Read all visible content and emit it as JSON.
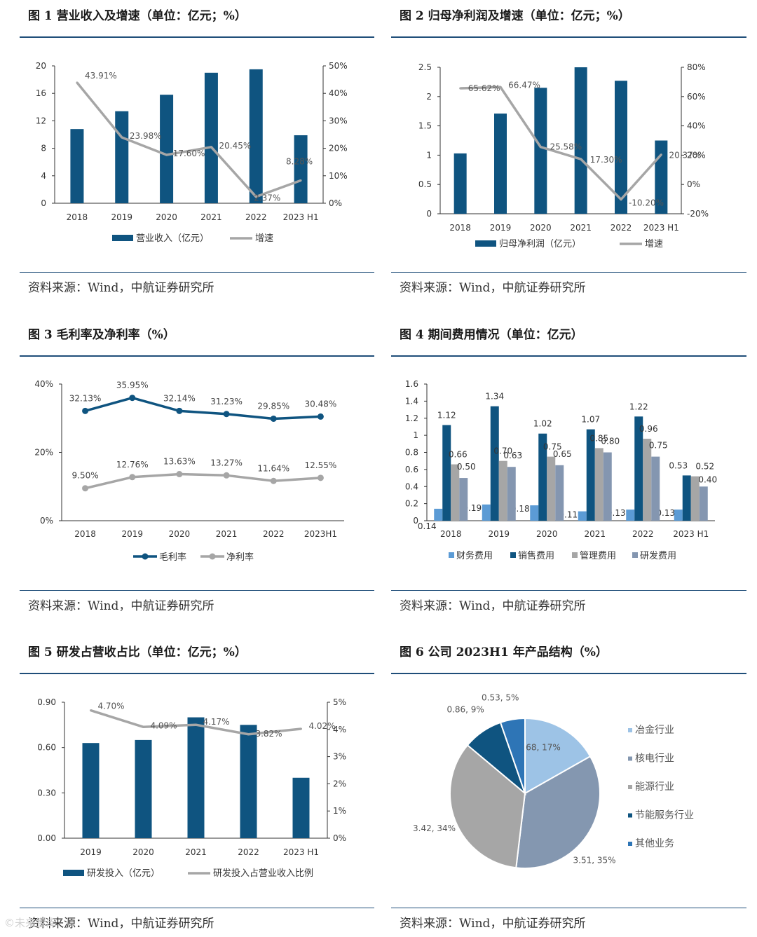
{
  "colors": {
    "navy": "#0f5480",
    "gray": "#a6a6a6",
    "light_blue": "#5b9bd5",
    "slate": "#8496b0",
    "rule": "#1f4e79"
  },
  "source_text": "资料来源：Wind，中航证券研究所",
  "watermark": "©未来智库",
  "figures": [
    {
      "title": "图 1 营业收入及增速（单位：亿元；%）",
      "chart_data": {
        "type": "bar+line",
        "categories": [
          "2018",
          "2019",
          "2020",
          "2021",
          "2022",
          "2023 H1"
        ],
        "series": [
          {
            "name": "营业收入（亿元）",
            "kind": "bar",
            "axis": "left",
            "values": [
              10.8,
              13.4,
              15.8,
              19.0,
              19.5,
              9.9
            ]
          },
          {
            "name": "增速",
            "kind": "line",
            "axis": "right",
            "values": [
              43.91,
              23.98,
              17.6,
              20.45,
              2.37,
              8.28
            ],
            "labels": [
              "43.91%",
              "23.98%",
              "17.60%",
              "20.45%",
              "2.37%",
              "8.28%"
            ]
          }
        ],
        "left_axis": {
          "min": 0,
          "max": 20,
          "ticks": [
            "0",
            "4",
            "8",
            "12",
            "16",
            "20"
          ]
        },
        "right_axis": {
          "min": 0,
          "max": 50,
          "ticks": [
            "0%",
            "10%",
            "20%",
            "30%",
            "40%",
            "50%"
          ]
        },
        "legend_position": "bottom"
      }
    },
    {
      "title": "图 2 归母净利润及增速（单位：亿元；%）",
      "chart_data": {
        "type": "bar+line",
        "categories": [
          "2018",
          "2019",
          "2020",
          "2021",
          "2022",
          "2023 H1"
        ],
        "series": [
          {
            "name": "归母净利润（亿元）",
            "kind": "bar",
            "axis": "left",
            "values": [
              1.03,
              1.71,
              2.15,
              2.5,
              2.27,
              1.25
            ]
          },
          {
            "name": "增速",
            "kind": "line",
            "axis": "right",
            "values": [
              65.62,
              66.47,
              25.58,
              17.3,
              -10.2,
              20.37
            ],
            "labels": [
              "65.62%",
              "66.47%",
              "25.58%",
              "17.30%",
              "-10.20%",
              "20.37%"
            ]
          }
        ],
        "left_axis": {
          "min": 0,
          "max": 2.5,
          "ticks": [
            "0",
            "0.5",
            "1",
            "1.5",
            "2",
            "2.5"
          ]
        },
        "right_axis": {
          "min": -20,
          "max": 80,
          "ticks": [
            "-20%",
            "0%",
            "20%",
            "40%",
            "60%",
            "80%"
          ]
        },
        "legend_position": "bottom"
      }
    },
    {
      "title": "图 3 毛利率及净利率（%）",
      "chart_data": {
        "type": "line",
        "categories": [
          "2018",
          "2019",
          "2020",
          "2021",
          "2022",
          "2023H1"
        ],
        "series": [
          {
            "name": "毛利率",
            "values": [
              32.13,
              35.95,
              32.14,
              31.23,
              29.85,
              30.48
            ],
            "labels": [
              "32.13%",
              "35.95%",
              "32.14%",
              "31.23%",
              "29.85%",
              "30.48%"
            ]
          },
          {
            "name": "净利率",
            "values": [
              9.5,
              12.76,
              13.63,
              13.27,
              11.64,
              12.55
            ],
            "labels": [
              "9.50%",
              "12.76%",
              "13.63%",
              "13.27%",
              "11.64%",
              "12.55%"
            ]
          }
        ],
        "y_axis": {
          "min": 0,
          "max": 40,
          "ticks": [
            "0%",
            "20%",
            "40%"
          ]
        },
        "legend_position": "bottom"
      }
    },
    {
      "title": "图 4 期间费用情况（单位：亿元）",
      "chart_data": {
        "type": "bar",
        "categories": [
          "2018",
          "2019",
          "2020",
          "2021",
          "2022",
          "2023 H1"
        ],
        "series": [
          {
            "name": "财务费用",
            "values": [
              0.14,
              0.19,
              0.18,
              0.11,
              0.13,
              0.13
            ],
            "labels": [
              "0.14",
              "0.19",
              "0.18",
              "0.11",
              "0.13",
              "0.13"
            ]
          },
          {
            "name": "销售费用",
            "values": [
              1.12,
              1.34,
              1.02,
              1.07,
              1.22,
              0.53
            ],
            "labels": [
              "1.12",
              "1.34",
              "1.02",
              "1.07",
              "1.22",
              "0.53"
            ]
          },
          {
            "name": "管理费用",
            "values": [
              0.66,
              0.7,
              0.75,
              0.85,
              0.96,
              0.52
            ],
            "labels": [
              "0.66",
              "0.70",
              "0.75",
              "0.85",
              "0.96",
              "0.52"
            ]
          },
          {
            "name": "研发费用",
            "values": [
              0.5,
              0.63,
              0.65,
              0.8,
              0.75,
              0.4
            ],
            "labels": [
              "0.50",
              "0.63",
              "0.65",
              "0.80",
              "0.75",
              "0.40"
            ]
          }
        ],
        "y_axis": {
          "min": 0,
          "max": 1.6,
          "ticks": [
            "0",
            "0.2",
            "0.4",
            "0.6",
            "0.8",
            "1",
            "1.2",
            "1.4",
            "1.6"
          ]
        },
        "legend_position": "bottom"
      }
    },
    {
      "title": "图 5 研发占营收占比（单位：亿元；%）",
      "chart_data": {
        "type": "bar+line",
        "categories": [
          "2019",
          "2020",
          "2021",
          "2022",
          "2023 H1"
        ],
        "series": [
          {
            "name": "研发投入（亿元）",
            "kind": "bar",
            "axis": "left",
            "values": [
              0.63,
              0.65,
              0.8,
              0.75,
              0.4
            ]
          },
          {
            "name": "研发投入占营业收入比例",
            "kind": "line",
            "axis": "right",
            "values": [
              4.7,
              4.09,
              4.17,
              3.82,
              4.02
            ],
            "labels": [
              "4.70%",
              "4.09%",
              "4.17%",
              "3.82%",
              "4.02%"
            ]
          }
        ],
        "left_axis": {
          "min": 0,
          "max": 0.9,
          "ticks": [
            "0.00",
            "0.30",
            "0.60",
            "0.90"
          ]
        },
        "right_axis": {
          "min": 0,
          "max": 5,
          "ticks": [
            "0%",
            "1%",
            "2%",
            "3%",
            "4%",
            "5%"
          ]
        },
        "legend_position": "bottom"
      }
    },
    {
      "title": "图 6 公司 2023H1 年产品结构（%）",
      "chart_data": {
        "type": "pie",
        "slices": [
          {
            "name": "冶金行业",
            "value": 1.68,
            "percent": 17,
            "label": "1.68, 17%"
          },
          {
            "name": "核电行业",
            "value": 3.51,
            "percent": 35,
            "label": "3.51, 35%"
          },
          {
            "name": "能源行业",
            "value": 3.42,
            "percent": 34,
            "label": "3.42, 34%"
          },
          {
            "name": "节能服务行业",
            "value": 0.86,
            "percent": 9,
            "label": "0.86, 9%"
          },
          {
            "name": "其他业务",
            "value": 0.53,
            "percent": 5,
            "label": "0.53, 5%"
          }
        ],
        "legend_position": "right"
      }
    }
  ]
}
